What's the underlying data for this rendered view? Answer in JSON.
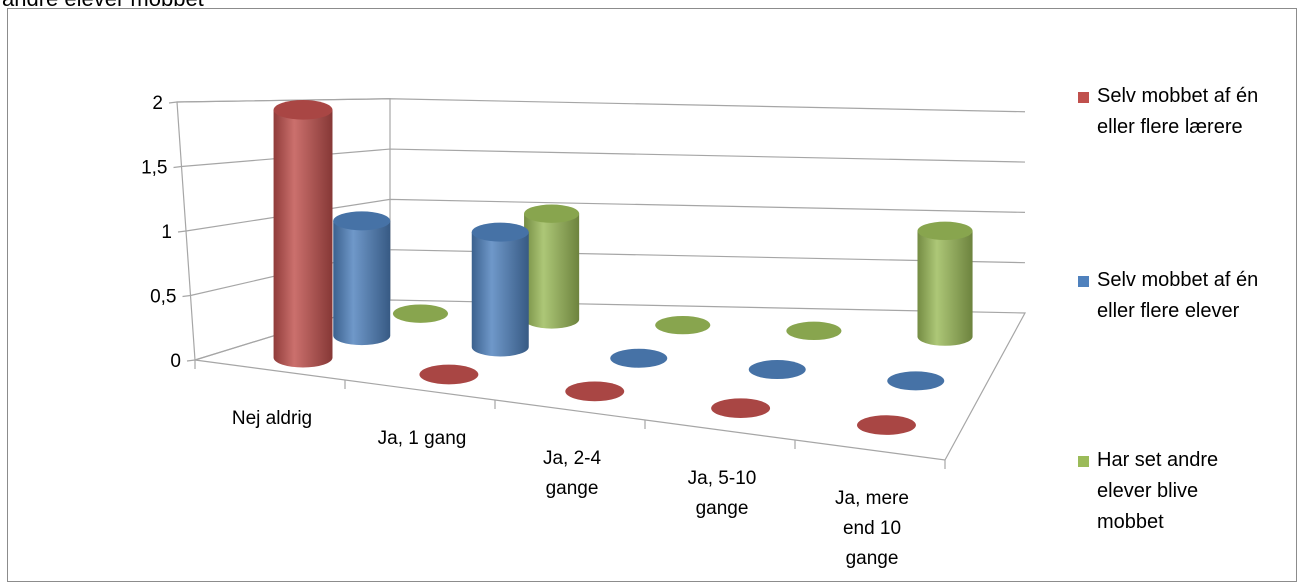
{
  "header": {
    "top_text": "andre elever mobbet"
  },
  "chart_data": {
    "type": "bar",
    "categories": [
      "Nej aldrig",
      "Ja, 1 gang",
      "Ja, 2-4 gange",
      "Ja, 5-10 gange",
      "Ja, mere end 10 gange"
    ],
    "category_label_lines": [
      [
        "Nej aldrig"
      ],
      [
        "Ja, 1 gang"
      ],
      [
        "Ja, 2-4",
        "gange"
      ],
      [
        "Ja, 5-10",
        "gange"
      ],
      [
        "Ja, mere",
        "end 10",
        "gange"
      ]
    ],
    "series": [
      {
        "name": "Selv mobbet af én eller flere lærere",
        "legend_lines": [
          "Selv mobbet af én",
          "eller flere lærere"
        ],
        "color": "#c0504d",
        "values": [
          2,
          0,
          0,
          0,
          0
        ]
      },
      {
        "name": "Selv mobbet af én eller flere elever",
        "legend_lines": [
          "Selv mobbet af én",
          "eller flere elever"
        ],
        "color": "#4f81bd",
        "values": [
          1,
          1,
          0,
          0,
          0
        ]
      },
      {
        "name": "Har set andre elever blive mobbet",
        "legend_lines": [
          "Har set andre",
          "elever blive",
          "mobbet"
        ],
        "color": "#9bbb59",
        "values": [
          0,
          1,
          0,
          0,
          1
        ]
      }
    ],
    "ylim": [
      0,
      2
    ],
    "yticks": [
      "0",
      "0,5",
      "1",
      "1,5",
      "2"
    ],
    "grid": true,
    "legend_position": "right",
    "title": "",
    "xlabel": "",
    "ylabel": ""
  }
}
